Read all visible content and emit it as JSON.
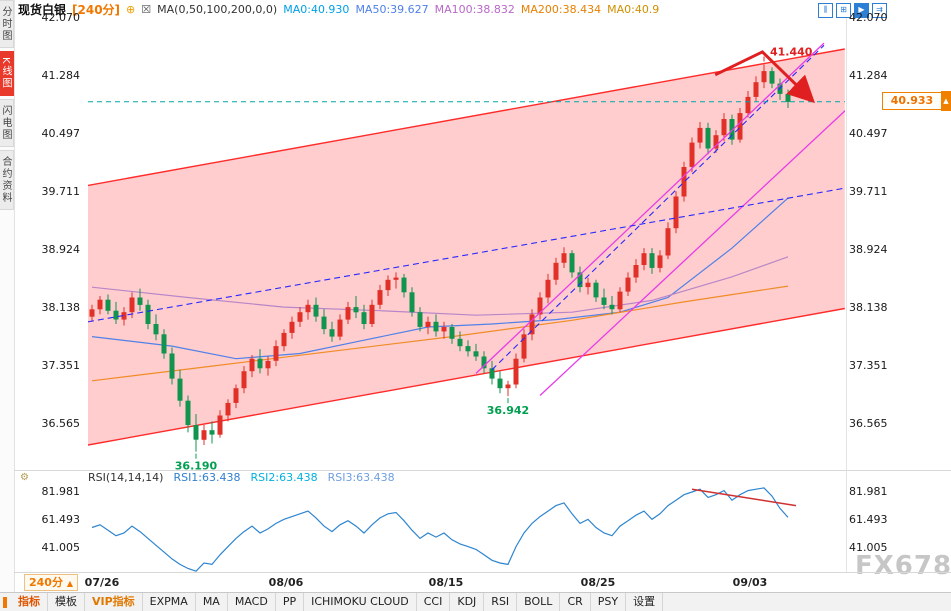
{
  "sidebar": {
    "tabs": [
      {
        "label": "分时图"
      },
      {
        "label": "K线图",
        "active": true
      },
      {
        "label": "闪电图"
      },
      {
        "label": "合约资料"
      }
    ]
  },
  "header": {
    "symbol": "现货白银",
    "period": "[240分]",
    "ma_formula": "MA(0,50,100,200,0,0)",
    "ma0": "MA0:40.930",
    "ma50": "MA50:39.627",
    "ma100": "MA100:38.832",
    "ma200": "MA200:38.434",
    "ma0b": "MA0:40.9"
  },
  "icons": {
    "plus_circle": "⊕",
    "ma_checkbox": "☒",
    "candle_view": "⫼",
    "grid_view": "⊞",
    "play": "▶",
    "fast_forward": "⇉",
    "settings_gear": "⚙",
    "dropdown_up": "▲",
    "price_pin": "▲"
  },
  "axes": {
    "price": [
      "42.070",
      "41.284",
      "40.497",
      "39.711",
      "38.924",
      "38.138",
      "37.351",
      "36.565"
    ],
    "rsi": [
      "81.981",
      "61.493",
      "41.005"
    ]
  },
  "price_marker": {
    "value": "40.933"
  },
  "rsi_panel": {
    "title": "RSI(14,14,14)",
    "v1": "RSI1:63.438",
    "v2": "RSI2:63.438",
    "v3": "RSI3:63.438"
  },
  "footer": {
    "period": "240分",
    "tabs": [
      "指标",
      "模板",
      "VIP指标",
      "EXPMA",
      "MA",
      "MACD",
      "PP",
      "ICHIMOKU CLOUD",
      "CCI",
      "KDJ",
      "RSI",
      "BOLL",
      "CR",
      "PSY",
      "设置"
    ]
  },
  "watermark": "FX678",
  "colors": {
    "up_candle": "#e03028",
    "down_candle": "#10944e",
    "channel": "#ff2a2a",
    "magenta_trend": "#e83ce8",
    "blue_trend": "#2828ff",
    "last_price_line": "#00a8a8",
    "accent_orange": "#f07800"
  },
  "chart_data": [
    {
      "type": "candlestick",
      "symbol": "现货白银",
      "period": "240分",
      "ylim": [
        35.94,
        42.07
      ],
      "y_ticks": [
        42.07,
        41.284,
        40.497,
        39.711,
        38.924,
        38.138,
        37.351,
        36.565
      ],
      "x_ticks": [
        {
          "label": "07/26",
          "i": 1
        },
        {
          "label": "08/06",
          "i": 24
        },
        {
          "label": "08/15",
          "i": 44
        },
        {
          "label": "08/25",
          "i": 63
        },
        {
          "label": "09/03",
          "i": 82
        }
      ],
      "last_price": 40.933,
      "up_color": "#e03028",
      "down_color": "#10944e",
      "candles": [
        [
          38.02,
          38.18,
          37.95,
          38.12
        ],
        [
          38.12,
          38.3,
          38.05,
          38.25
        ],
        [
          38.25,
          38.32,
          38.05,
          38.1
        ],
        [
          38.1,
          38.22,
          37.92,
          37.98
        ],
        [
          37.98,
          38.15,
          37.9,
          38.08
        ],
        [
          38.08,
          38.35,
          38.0,
          38.28
        ],
        [
          38.28,
          38.4,
          38.1,
          38.18
        ],
        [
          38.18,
          38.25,
          37.85,
          37.92
        ],
        [
          37.92,
          38.05,
          37.7,
          37.78
        ],
        [
          37.78,
          37.85,
          37.45,
          37.52
        ],
        [
          37.52,
          37.6,
          37.1,
          37.18
        ],
        [
          37.18,
          37.3,
          36.8,
          36.88
        ],
        [
          36.88,
          36.95,
          36.45,
          36.55
        ],
        [
          36.55,
          36.7,
          36.19,
          36.35
        ],
        [
          36.35,
          36.55,
          36.28,
          36.48
        ],
        [
          36.48,
          36.6,
          36.3,
          36.42
        ],
        [
          36.42,
          36.75,
          36.38,
          36.68
        ],
        [
          36.68,
          36.9,
          36.6,
          36.85
        ],
        [
          36.85,
          37.1,
          36.78,
          37.05
        ],
        [
          37.05,
          37.35,
          36.98,
          37.28
        ],
        [
          37.28,
          37.5,
          37.2,
          37.45
        ],
        [
          37.45,
          37.58,
          37.25,
          37.32
        ],
        [
          37.32,
          37.48,
          37.22,
          37.42
        ],
        [
          37.42,
          37.7,
          37.35,
          37.62
        ],
        [
          37.62,
          37.85,
          37.55,
          37.8
        ],
        [
          37.8,
          38.02,
          37.72,
          37.95
        ],
        [
          37.95,
          38.15,
          37.88,
          38.08
        ],
        [
          38.08,
          38.25,
          37.98,
          38.18
        ],
        [
          38.18,
          38.28,
          37.95,
          38.02
        ],
        [
          38.02,
          38.12,
          37.78,
          37.85
        ],
        [
          37.85,
          37.95,
          37.68,
          37.75
        ],
        [
          37.75,
          38.05,
          37.7,
          37.98
        ],
        [
          37.98,
          38.22,
          37.92,
          38.15
        ],
        [
          38.15,
          38.3,
          38.0,
          38.08
        ],
        [
          38.08,
          38.18,
          37.85,
          37.92
        ],
        [
          37.92,
          38.25,
          37.88,
          38.18
        ],
        [
          38.18,
          38.45,
          38.12,
          38.38
        ],
        [
          38.38,
          38.58,
          38.3,
          38.52
        ],
        [
          38.52,
          38.62,
          38.4,
          38.55
        ],
        [
          38.55,
          38.6,
          38.28,
          38.35
        ],
        [
          38.35,
          38.42,
          38.02,
          38.08
        ],
        [
          38.08,
          38.15,
          37.82,
          37.88
        ],
        [
          37.88,
          38.02,
          37.78,
          37.95
        ],
        [
          37.95,
          38.05,
          37.75,
          37.82
        ],
        [
          37.82,
          37.95,
          37.72,
          37.88
        ],
        [
          37.88,
          37.92,
          37.65,
          37.72
        ],
        [
          37.72,
          37.82,
          37.55,
          37.62
        ],
        [
          37.62,
          37.7,
          37.48,
          37.55
        ],
        [
          37.55,
          37.65,
          37.42,
          37.48
        ],
        [
          37.48,
          37.55,
          37.25,
          37.32
        ],
        [
          37.32,
          37.42,
          37.1,
          37.18
        ],
        [
          37.18,
          37.28,
          36.98,
          37.05
        ],
        [
          37.05,
          37.15,
          36.942,
          37.1
        ],
        [
          37.1,
          37.52,
          37.05,
          37.45
        ],
        [
          37.45,
          37.85,
          37.4,
          37.78
        ],
        [
          37.78,
          38.12,
          37.7,
          38.05
        ],
        [
          38.05,
          38.35,
          37.98,
          38.28
        ],
        [
          38.28,
          38.6,
          38.2,
          38.52
        ],
        [
          38.52,
          38.82,
          38.45,
          38.75
        ],
        [
          38.75,
          38.96,
          38.68,
          38.88
        ],
        [
          38.88,
          38.92,
          38.55,
          38.62
        ],
        [
          38.62,
          38.7,
          38.35,
          38.42
        ],
        [
          38.42,
          38.55,
          38.32,
          38.48
        ],
        [
          38.48,
          38.52,
          38.22,
          38.28
        ],
        [
          38.28,
          38.4,
          38.12,
          38.18
        ],
        [
          38.18,
          38.3,
          38.05,
          38.12
        ],
        [
          38.12,
          38.42,
          38.08,
          38.36
        ],
        [
          38.36,
          38.62,
          38.3,
          38.55
        ],
        [
          38.55,
          38.8,
          38.48,
          38.72
        ],
        [
          38.72,
          38.95,
          38.65,
          38.88
        ],
        [
          38.88,
          38.95,
          38.6,
          38.68
        ],
        [
          38.68,
          38.92,
          38.62,
          38.85
        ],
        [
          38.85,
          39.3,
          38.8,
          39.22
        ],
        [
          39.22,
          39.72,
          39.15,
          39.65
        ],
        [
          39.65,
          40.12,
          39.58,
          40.05
        ],
        [
          40.05,
          40.45,
          39.98,
          40.38
        ],
        [
          40.38,
          40.66,
          40.3,
          40.58
        ],
        [
          40.58,
          40.65,
          40.22,
          40.3
        ],
        [
          40.3,
          40.55,
          40.24,
          40.48
        ],
        [
          40.48,
          40.78,
          40.4,
          40.7
        ],
        [
          40.7,
          40.76,
          40.35,
          40.42
        ],
        [
          40.42,
          40.85,
          40.38,
          40.78
        ],
        [
          40.78,
          41.08,
          40.72,
          41.0
        ],
        [
          41.0,
          41.28,
          40.94,
          41.2
        ],
        [
          41.2,
          41.44,
          41.12,
          41.35
        ],
        [
          41.35,
          41.4,
          41.12,
          41.18
        ],
        [
          41.18,
          41.25,
          40.96,
          41.04
        ],
        [
          41.04,
          41.1,
          40.85,
          40.933
        ]
      ],
      "ma": [
        {
          "name": "MA50",
          "color": "#4f81e8",
          "points": [
            [
              0,
              37.75
            ],
            [
              10,
              37.62
            ],
            [
              18,
              37.45
            ],
            [
              26,
              37.52
            ],
            [
              34,
              37.7
            ],
            [
              42,
              37.88
            ],
            [
              50,
              37.92
            ],
            [
              58,
              37.98
            ],
            [
              66,
              38.08
            ],
            [
              72,
              38.28
            ],
            [
              80,
              38.95
            ],
            [
              87,
              39.627
            ]
          ]
        },
        {
          "name": "MA100",
          "color": "#b886c8",
          "points": [
            [
              0,
              38.42
            ],
            [
              12,
              38.28
            ],
            [
              24,
              38.15
            ],
            [
              36,
              38.1
            ],
            [
              48,
              38.04
            ],
            [
              60,
              38.08
            ],
            [
              70,
              38.24
            ],
            [
              80,
              38.56
            ],
            [
              87,
              38.832
            ]
          ]
        },
        {
          "name": "MA200",
          "color": "#f08c28",
          "points": [
            [
              0,
              37.15
            ],
            [
              15,
              37.35
            ],
            [
              30,
              37.55
            ],
            [
              45,
              37.75
            ],
            [
              60,
              37.97
            ],
            [
              74,
              38.22
            ],
            [
              87,
              38.434
            ]
          ]
        }
      ],
      "overlays": {
        "channel": {
          "color": "#ff2a2a",
          "fill": "rgba(255,70,70,0.27)",
          "top": [
            [
              -0.5,
              39.8
            ],
            [
              94.1,
              41.65
            ]
          ],
          "bottom": [
            [
              -0.5,
              36.28
            ],
            [
              94.1,
              38.13
            ]
          ]
        },
        "lines": [
          {
            "name": "trend-magenta-1",
            "color": "#e83ce8",
            "width": 1.3,
            "points": [
              [
                48,
                37.25
              ],
              [
                91.5,
                41.73
              ]
            ]
          },
          {
            "name": "trend-magenta-2",
            "color": "#e83ce8",
            "width": 1.3,
            "points": [
              [
                56,
                36.95
              ],
              [
                94.5,
                40.85
              ]
            ]
          },
          {
            "name": "trend-blue-dashed-gentle",
            "color": "#2828ff",
            "width": 1.1,
            "dash": "6,4",
            "points": [
              [
                -0.5,
                37.95
              ],
              [
                94.5,
                39.77
              ]
            ]
          },
          {
            "name": "trend-blue-dashed-steep",
            "color": "#2828ff",
            "width": 1.1,
            "dash": "6,4",
            "points": [
              [
                50,
                37.3
              ],
              [
                91.5,
                41.7
              ]
            ]
          }
        ]
      },
      "annotations": {
        "high": {
          "i": 84,
          "price": 41.44,
          "label": "41.440",
          "color": "#e02020"
        },
        "lows": [
          {
            "i": 13,
            "price": 36.19,
            "label": "36.190",
            "color": "#00a050"
          },
          {
            "i": 52,
            "price": 36.942,
            "label": "36.942",
            "color": "#00a050"
          }
        ],
        "arrow": {
          "color": "#e02020",
          "points": [
            [
              77.9,
              41.3
            ],
            [
              83.8,
              41.61
            ],
            [
              89.3,
              41.03
            ]
          ]
        }
      }
    },
    {
      "type": "line",
      "name": "RSI(14,14,14)",
      "last_values": [
        63.438,
        63.438,
        63.438
      ],
      "y_ticks": [
        81.981,
        61.493,
        41.005
      ],
      "color": "#2e85d0",
      "values": [
        56,
        58,
        54,
        50,
        52,
        57,
        53,
        48,
        43,
        38,
        33,
        29,
        26,
        24,
        30,
        29,
        36,
        42,
        48,
        53,
        57,
        52,
        55,
        59,
        62,
        64,
        66,
        68,
        63,
        57,
        53,
        58,
        61,
        57,
        52,
        58,
        63,
        66,
        67,
        61,
        54,
        48,
        52,
        49,
        52,
        47,
        44,
        42,
        40,
        36,
        32,
        30,
        29,
        42,
        52,
        59,
        64,
        68,
        72,
        74,
        66,
        59,
        62,
        56,
        52,
        50,
        57,
        61,
        65,
        68,
        62,
        66,
        72,
        76,
        80,
        82,
        84,
        78,
        80,
        83,
        76,
        80,
        83,
        84,
        85,
        79,
        70,
        63.4
      ],
      "trend_line": {
        "color": "#d03030",
        "points": [
          [
            75,
            84
          ],
          [
            88,
            72
          ]
        ]
      }
    }
  ]
}
